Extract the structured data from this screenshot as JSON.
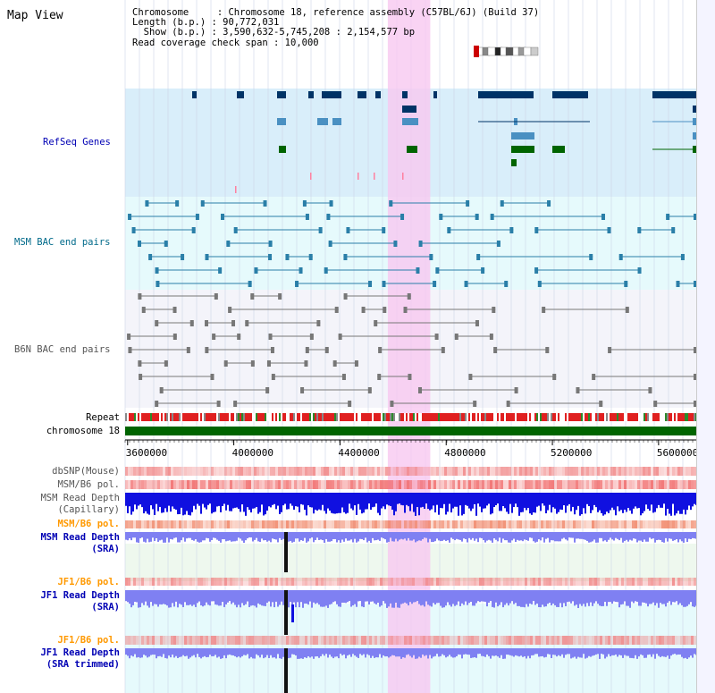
{
  "title": "Map View",
  "info": {
    "chromosome_line": "Chromosome     : Chromosome 18, reference assembly (C57BL/6J) (Build 37)",
    "length_line": "Length (b.p.) : 90,772,031",
    "show_line": "  Show (b.p.) : 3,590,632-5,745,208 : 2,154,577 bp",
    "span_line": "Read coverage check span : 10,000"
  },
  "tracks": {
    "refseq_label": "RefSeq Genes",
    "msm_bac_label": "MSM BAC end pairs",
    "b6n_bac_label": "B6N BAC end pairs",
    "repeat_label": "Repeat",
    "chromosome_label": "chromosome 18",
    "dbsnp_label": "dbSNP(Mouse)",
    "msm_b6_pol_label": "MSM/B6 pol.",
    "msm_read_depth_cap_label_1": "MSM Read Depth",
    "msm_read_depth_cap_label_2": "(Capillary)",
    "msm_b6_pol_label_2": "MSM/B6 pol.",
    "msm_read_depth_sra_label_1": "MSM Read Depth",
    "msm_read_depth_sra_label_2": "(SRA)",
    "jf1_b6_pol_label": "JF1/B6 pol.",
    "jf1_read_depth_label_1": "JF1 Read Depth",
    "jf1_read_depth_label_2": "(SRA)",
    "jf1_b6_pol_label_2": "JF1/B6 pol.",
    "jf1_trim_label_1": "JF1 Read Depth",
    "jf1_trim_label_2": "(SRA trimmed)"
  },
  "axis": {
    "ticks": [
      "3600000",
      "4000000",
      "4400000",
      "4800000",
      "5200000",
      "5600000"
    ],
    "tick_values": [
      3600000,
      4000000,
      4400000,
      4800000,
      5200000,
      5600000
    ],
    "range": [
      3590632,
      5745208
    ]
  },
  "highlight": {
    "start": 4580000,
    "end": 4740000
  },
  "colors": {
    "refseq_bg": "#d9eefa",
    "msm_bg": "#e6fafc",
    "b6n_bg": "#f4f4fa",
    "highlight": "#f7c8f0",
    "chromosome": "#006400",
    "depth_blue": "#1010e0",
    "depth_light": "#7f80f2",
    "pol_red": "#f08080",
    "sra_bg": "#eef8ee",
    "jf1_bg": "#e6fafc"
  }
}
